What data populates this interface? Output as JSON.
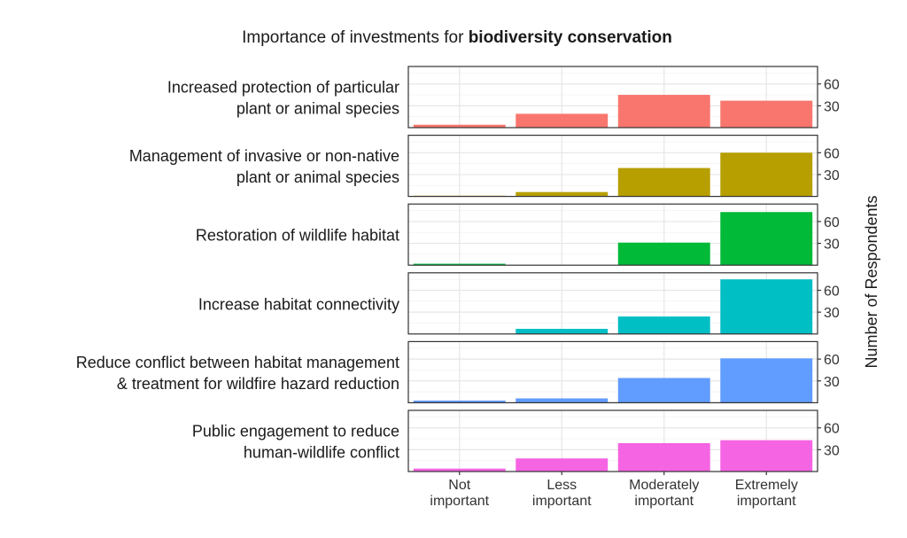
{
  "chart_data": {
    "type": "bar",
    "title_prefix": "Importance of investments for ",
    "title_bold": "biodiversity conservation",
    "categories": [
      "Not important",
      "Less important",
      "Moderately important",
      "Extremely important"
    ],
    "category_lines": [
      [
        "Not",
        "important"
      ],
      [
        "Less",
        "important"
      ],
      [
        "Moderately",
        "important"
      ],
      [
        "Extremely",
        "important"
      ]
    ],
    "ylabel": "Number of Respondents",
    "ylim": [
      0,
      84
    ],
    "yticks": [
      30,
      60
    ],
    "grid": true,
    "facets": [
      {
        "label_lines": [
          "Increased protection of particular",
          "plant or animal species"
        ],
        "color": "#F8766D",
        "values": [
          4,
          19,
          45,
          37
        ]
      },
      {
        "label_lines": [
          "Management of invasive or non-native",
          "plant or animal species"
        ],
        "color": "#B79F00",
        "values": [
          1,
          6,
          39,
          60
        ]
      },
      {
        "label_lines": [
          "Restoration of wildlife habitat"
        ],
        "color": "#00BA38",
        "values": [
          2,
          0,
          31,
          73
        ]
      },
      {
        "label_lines": [
          "Increase habitat connectivity"
        ],
        "color": "#00BFC4",
        "values": [
          0,
          7,
          24,
          75
        ]
      },
      {
        "label_lines": [
          "Reduce conflict between habitat management",
          "& treatment for wildfire hazard reduction"
        ],
        "color": "#619CFF",
        "values": [
          3,
          6,
          34,
          61
        ]
      },
      {
        "label_lines": [
          "Public engagement to reduce",
          "human-wildlife conflict"
        ],
        "color": "#F564E3",
        "values": [
          4,
          18,
          39,
          43
        ]
      }
    ]
  }
}
